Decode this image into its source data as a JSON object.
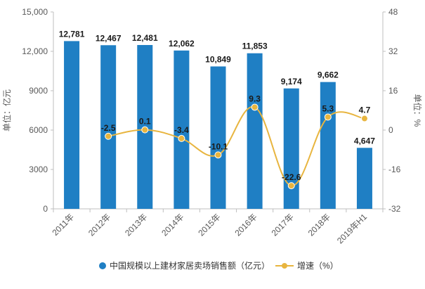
{
  "chart_data": {
    "type": "bar",
    "categories": [
      "2011年",
      "2012年",
      "2013年",
      "2014年",
      "2015年",
      "2016年",
      "2017年",
      "2018年",
      "2019年H1"
    ],
    "series": [
      {
        "name": "中国规模以上建材家居卖场销售额（亿元）",
        "type": "bar",
        "axis": "left",
        "color": "#1f7fc4",
        "values": [
          12781,
          12467,
          12481,
          12062,
          10849,
          11853,
          9174,
          9662,
          4647
        ],
        "labels": [
          "12,781",
          "12,467",
          "12,481",
          "12,062",
          "10,849",
          "11,853",
          "9,174",
          "9,662",
          "4,647"
        ]
      },
      {
        "name": "增速（%）",
        "type": "line",
        "axis": "right",
        "color": "#e8b53f",
        "values": [
          null,
          -2.5,
          0.1,
          -3.4,
          -10.1,
          9.3,
          -22.6,
          5.3,
          4.7
        ],
        "labels": [
          "",
          "-2.5",
          "0.1",
          "-3.4",
          "-10.1",
          "9.3",
          "-22.6",
          "5.3",
          "4.7"
        ]
      }
    ],
    "y_left": {
      "label": "单位：亿元",
      "range": [
        0,
        15000
      ],
      "ticks": [
        0,
        3000,
        6000,
        9000,
        12000,
        15000
      ],
      "tick_labels": [
        "0",
        "3000",
        "6000",
        "9000",
        "12,000",
        "15,000"
      ]
    },
    "y_right": {
      "label": "单位：%",
      "range": [
        -32,
        48
      ],
      "ticks": [
        -32,
        -16,
        0,
        16,
        32,
        48
      ],
      "tick_labels": [
        "-32",
        "-16",
        "0",
        "16",
        "32",
        "48"
      ]
    },
    "grid": false,
    "legend_position": "bottom-center",
    "title": ""
  }
}
